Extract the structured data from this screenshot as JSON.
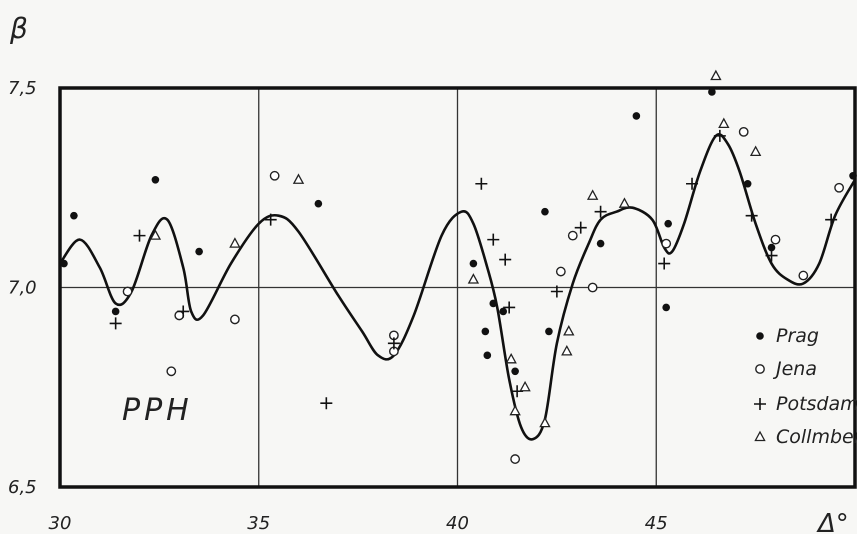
{
  "chart_data": {
    "type": "scatter",
    "ylabel": "β",
    "xlabel": "Δ°",
    "panel_label": "PPH",
    "xlim": [
      30,
      50
    ],
    "ylim": [
      6.5,
      7.5
    ],
    "x_ticks": [
      30,
      35,
      40,
      45
    ],
    "x_tick_labels": [
      "30",
      "35",
      "40",
      "45"
    ],
    "y_ticks": [
      6.5,
      7.0,
      7.5
    ],
    "y_tick_labels": [
      "6,5",
      "7,0",
      "7,5"
    ],
    "grid": true,
    "legend_position": "bottom-right",
    "series": [
      {
        "name": "Prag",
        "marker": "filled-circle",
        "points": [
          [
            30.1,
            7.06
          ],
          [
            30.35,
            7.18
          ],
          [
            31.4,
            6.94
          ],
          [
            32.4,
            7.27
          ],
          [
            33.5,
            7.09
          ],
          [
            36.5,
            7.21
          ],
          [
            40.4,
            7.06
          ],
          [
            40.9,
            6.96
          ],
          [
            41.15,
            6.94
          ],
          [
            40.7,
            6.89
          ],
          [
            40.75,
            6.83
          ],
          [
            41.45,
            6.79
          ],
          [
            42.2,
            7.19
          ],
          [
            42.3,
            6.89
          ],
          [
            43.6,
            7.11
          ],
          [
            44.5,
            7.43
          ],
          [
            45.3,
            7.16
          ],
          [
            45.25,
            6.95
          ],
          [
            46.4,
            7.49
          ],
          [
            47.3,
            7.26
          ],
          [
            47.9,
            7.1
          ],
          [
            49.95,
            7.28
          ]
        ]
      },
      {
        "name": "Jena",
        "marker": "open-circle",
        "points": [
          [
            31.7,
            6.99
          ],
          [
            33.0,
            6.93
          ],
          [
            32.8,
            6.79
          ],
          [
            34.4,
            6.92
          ],
          [
            35.4,
            7.28
          ],
          [
            38.4,
            6.88
          ],
          [
            38.4,
            6.84
          ],
          [
            41.45,
            6.57
          ],
          [
            42.6,
            7.04
          ],
          [
            42.9,
            7.13
          ],
          [
            43.4,
            7.0
          ],
          [
            45.25,
            7.11
          ],
          [
            47.2,
            7.39
          ],
          [
            48.0,
            7.12
          ],
          [
            48.7,
            7.03
          ],
          [
            49.6,
            7.25
          ]
        ]
      },
      {
        "name": "Potsdam",
        "marker": "plus",
        "points": [
          [
            31.4,
            6.91
          ],
          [
            32.0,
            7.13
          ],
          [
            33.1,
            6.94
          ],
          [
            35.3,
            7.17
          ],
          [
            36.7,
            6.71
          ],
          [
            38.4,
            6.86
          ],
          [
            40.6,
            7.26
          ],
          [
            40.9,
            7.12
          ],
          [
            41.2,
            7.07
          ],
          [
            41.3,
            6.95
          ],
          [
            41.5,
            6.74
          ],
          [
            42.5,
            6.99
          ],
          [
            43.1,
            7.15
          ],
          [
            43.6,
            7.19
          ],
          [
            45.2,
            7.06
          ],
          [
            45.9,
            7.26
          ],
          [
            46.6,
            7.38
          ],
          [
            47.4,
            7.18
          ],
          [
            47.9,
            7.08
          ],
          [
            49.4,
            7.17
          ]
        ]
      },
      {
        "name": "Collmberg",
        "marker": "triangle",
        "points": [
          [
            32.4,
            7.13
          ],
          [
            34.4,
            7.11
          ],
          [
            36.0,
            7.27
          ],
          [
            40.4,
            7.02
          ],
          [
            41.35,
            6.82
          ],
          [
            41.45,
            6.69
          ],
          [
            41.7,
            6.75
          ],
          [
            42.2,
            6.66
          ],
          [
            42.75,
            6.84
          ],
          [
            42.8,
            6.89
          ],
          [
            43.4,
            7.23
          ],
          [
            44.2,
            7.21
          ],
          [
            46.5,
            7.53
          ],
          [
            46.7,
            7.41
          ],
          [
            47.5,
            7.34
          ]
        ]
      }
    ],
    "curve_points": [
      [
        30,
        7.06
      ],
      [
        30.5,
        7.12
      ],
      [
        31.0,
        7.05
      ],
      [
        31.4,
        6.96
      ],
      [
        31.8,
        6.99
      ],
      [
        32.3,
        7.13
      ],
      [
        32.7,
        7.17
      ],
      [
        33.1,
        7.05
      ],
      [
        33.3,
        6.94
      ],
      [
        33.6,
        6.93
      ],
      [
        34.3,
        7.06
      ],
      [
        35.0,
        7.16
      ],
      [
        35.5,
        7.18
      ],
      [
        36.0,
        7.14
      ],
      [
        37.0,
        6.98
      ],
      [
        37.6,
        6.89
      ],
      [
        38.0,
        6.83
      ],
      [
        38.4,
        6.83
      ],
      [
        38.9,
        6.93
      ],
      [
        39.6,
        7.13
      ],
      [
        40.1,
        7.19
      ],
      [
        40.4,
        7.16
      ],
      [
        40.75,
        7.05
      ],
      [
        41.0,
        6.95
      ],
      [
        41.3,
        6.77
      ],
      [
        41.6,
        6.65
      ],
      [
        41.9,
        6.62
      ],
      [
        42.2,
        6.67
      ],
      [
        42.5,
        6.86
      ],
      [
        42.9,
        7.01
      ],
      [
        43.3,
        7.11
      ],
      [
        43.6,
        7.17
      ],
      [
        44.0,
        7.19
      ],
      [
        44.4,
        7.2
      ],
      [
        44.9,
        7.17
      ],
      [
        45.2,
        7.1
      ],
      [
        45.4,
        7.09
      ],
      [
        45.7,
        7.16
      ],
      [
        46.1,
        7.29
      ],
      [
        46.5,
        7.38
      ],
      [
        46.8,
        7.36
      ],
      [
        47.1,
        7.29
      ],
      [
        47.5,
        7.16
      ],
      [
        47.9,
        7.06
      ],
      [
        48.3,
        7.02
      ],
      [
        48.7,
        7.01
      ],
      [
        49.1,
        7.06
      ],
      [
        49.5,
        7.18
      ],
      [
        50.0,
        7.27
      ]
    ]
  }
}
